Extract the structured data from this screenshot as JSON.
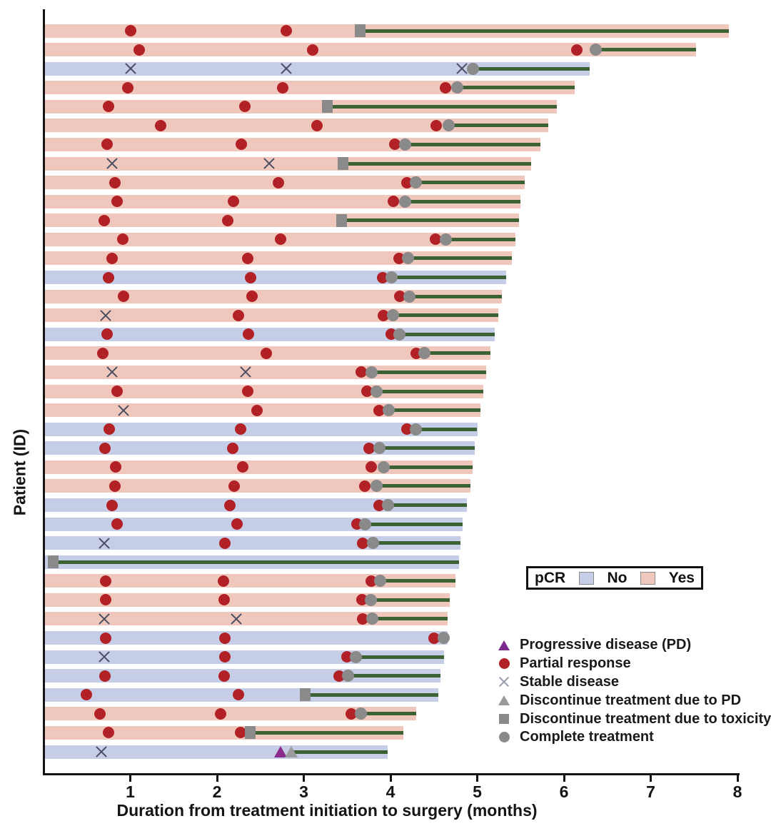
{
  "pcr_legend": {
    "title": "pCR",
    "no_label": "No",
    "yes_label": "Yes"
  },
  "marker_legend": {
    "items": [
      {
        "key": "progressive-disease",
        "marker": "pd_triangle",
        "label": "Progressive disease (PD)"
      },
      {
        "key": "partial-response",
        "marker": "red_circle",
        "label": "Partial response"
      },
      {
        "key": "stable-disease",
        "marker": "x_cross",
        "label": "Stable disease"
      },
      {
        "key": "discontinue-pd",
        "marker": "gray_triangle",
        "label": "Discontinue treatment due to PD"
      },
      {
        "key": "discontinue-toxicity",
        "marker": "gray_square",
        "label": "Discontinue treatment due to toxicity"
      },
      {
        "key": "complete-treatment",
        "marker": "gray_circle",
        "label": "Complete treatment"
      }
    ]
  },
  "colors": {
    "pcr_yes": "#f0c7bd",
    "pcr_no": "#c5cde7",
    "partial_response": "#b22126",
    "stable_disease": "#4a4e63",
    "progressive_disease": "#8b2b8d",
    "treatment_gap_line": "#3c6132",
    "discontinue_complete_marker": "#8a8a8a",
    "axis": "#141414"
  },
  "chart_data": {
    "type": "bar",
    "subtype": "swimmer-plot",
    "title": "",
    "xlabel": "Duration from treatment initiation to surgery (months)",
    "ylabel": "Patient (ID)",
    "xlim": [
      0,
      8
    ],
    "x_ticks": [
      1,
      2,
      3,
      4,
      5,
      6,
      7,
      8
    ],
    "grid": false,
    "bar_value_meaning": "months from treatment initiation to surgery",
    "patients": [
      {
        "pcr": "Yes",
        "surgery_months": 7.9,
        "treatment_end": {
          "type": "discontinue_toxicity",
          "x": 3.65
        },
        "markers": [
          {
            "type": "partial_response",
            "x": 1.0
          },
          {
            "type": "partial_response",
            "x": 2.8
          }
        ]
      },
      {
        "pcr": "Yes",
        "surgery_months": 7.52,
        "treatment_end": {
          "type": "complete_treatment",
          "x": 6.37
        },
        "markers": [
          {
            "type": "partial_response",
            "x": 1.1
          },
          {
            "type": "partial_response",
            "x": 3.1
          },
          {
            "type": "partial_response",
            "x": 6.15
          }
        ]
      },
      {
        "pcr": "No",
        "surgery_months": 6.3,
        "treatment_end": {
          "type": "complete_treatment",
          "x": 4.95
        },
        "markers": [
          {
            "type": "stable_disease",
            "x": 1.0
          },
          {
            "type": "stable_disease",
            "x": 2.8
          },
          {
            "type": "stable_disease",
            "x": 4.82
          }
        ]
      },
      {
        "pcr": "Yes",
        "surgery_months": 6.12,
        "treatment_end": {
          "type": "complete_treatment",
          "x": 4.77
        },
        "markers": [
          {
            "type": "partial_response",
            "x": 0.97
          },
          {
            "type": "partial_response",
            "x": 2.76
          },
          {
            "type": "partial_response",
            "x": 4.63
          }
        ]
      },
      {
        "pcr": "Yes",
        "surgery_months": 5.92,
        "treatment_end": {
          "type": "discontinue_toxicity",
          "x": 3.27
        },
        "markers": [
          {
            "type": "partial_response",
            "x": 0.75
          },
          {
            "type": "partial_response",
            "x": 2.32
          }
        ]
      },
      {
        "pcr": "Yes",
        "surgery_months": 5.82,
        "treatment_end": {
          "type": "complete_treatment",
          "x": 4.67
        },
        "markers": [
          {
            "type": "partial_response",
            "x": 1.35
          },
          {
            "type": "partial_response",
            "x": 3.15
          },
          {
            "type": "partial_response",
            "x": 4.53
          }
        ]
      },
      {
        "pcr": "Yes",
        "surgery_months": 5.73,
        "treatment_end": {
          "type": "complete_treatment",
          "x": 4.17
        },
        "markers": [
          {
            "type": "partial_response",
            "x": 0.73
          },
          {
            "type": "partial_response",
            "x": 2.28
          },
          {
            "type": "partial_response",
            "x": 4.05
          }
        ]
      },
      {
        "pcr": "Yes",
        "surgery_months": 5.62,
        "treatment_end": {
          "type": "discontinue_toxicity",
          "x": 3.45
        },
        "markers": [
          {
            "type": "stable_disease",
            "x": 0.79
          },
          {
            "type": "stable_disease",
            "x": 2.6
          }
        ]
      },
      {
        "pcr": "Yes",
        "surgery_months": 5.55,
        "treatment_end": {
          "type": "complete_treatment",
          "x": 4.29
        },
        "markers": [
          {
            "type": "partial_response",
            "x": 0.82
          },
          {
            "type": "partial_response",
            "x": 2.71
          },
          {
            "type": "partial_response",
            "x": 4.19
          }
        ]
      },
      {
        "pcr": "Yes",
        "surgery_months": 5.5,
        "treatment_end": {
          "type": "complete_treatment",
          "x": 4.17
        },
        "markers": [
          {
            "type": "partial_response",
            "x": 0.85
          },
          {
            "type": "partial_response",
            "x": 2.19
          },
          {
            "type": "partial_response",
            "x": 4.03
          }
        ]
      },
      {
        "pcr": "Yes",
        "surgery_months": 5.48,
        "treatment_end": {
          "type": "discontinue_toxicity",
          "x": 3.44
        },
        "markers": [
          {
            "type": "partial_response",
            "x": 0.7
          },
          {
            "type": "partial_response",
            "x": 2.12
          }
        ]
      },
      {
        "pcr": "Yes",
        "surgery_months": 5.44,
        "treatment_end": {
          "type": "complete_treatment",
          "x": 4.64
        },
        "markers": [
          {
            "type": "partial_response",
            "x": 0.91
          },
          {
            "type": "partial_response",
            "x": 2.73
          },
          {
            "type": "partial_response",
            "x": 4.52
          }
        ]
      },
      {
        "pcr": "Yes",
        "surgery_months": 5.4,
        "treatment_end": {
          "type": "complete_treatment",
          "x": 4.2
        },
        "markers": [
          {
            "type": "partial_response",
            "x": 0.79
          },
          {
            "type": "partial_response",
            "x": 2.35
          },
          {
            "type": "partial_response",
            "x": 4.1
          }
        ]
      },
      {
        "pcr": "No",
        "surgery_months": 5.33,
        "treatment_end": {
          "type": "complete_treatment",
          "x": 4.01
        },
        "markers": [
          {
            "type": "partial_response",
            "x": 0.75
          },
          {
            "type": "partial_response",
            "x": 2.39
          },
          {
            "type": "partial_response",
            "x": 3.91
          }
        ]
      },
      {
        "pcr": "Yes",
        "surgery_months": 5.28,
        "treatment_end": {
          "type": "complete_treatment",
          "x": 4.22
        },
        "markers": [
          {
            "type": "partial_response",
            "x": 0.92
          },
          {
            "type": "partial_response",
            "x": 2.4
          },
          {
            "type": "partial_response",
            "x": 4.11
          }
        ]
      },
      {
        "pcr": "Yes",
        "surgery_months": 5.24,
        "treatment_end": {
          "type": "complete_treatment",
          "x": 4.03
        },
        "markers": [
          {
            "type": "stable_disease",
            "x": 0.72
          },
          {
            "type": "partial_response",
            "x": 2.25
          },
          {
            "type": "partial_response",
            "x": 3.92
          }
        ]
      },
      {
        "pcr": "No",
        "surgery_months": 5.2,
        "treatment_end": {
          "type": "complete_treatment",
          "x": 4.1
        },
        "markers": [
          {
            "type": "partial_response",
            "x": 0.73
          },
          {
            "type": "partial_response",
            "x": 2.36
          },
          {
            "type": "partial_response",
            "x": 4.01
          }
        ]
      },
      {
        "pcr": "Yes",
        "surgery_months": 5.15,
        "treatment_end": {
          "type": "complete_treatment",
          "x": 4.39
        },
        "markers": [
          {
            "type": "partial_response",
            "x": 0.68
          },
          {
            "type": "partial_response",
            "x": 2.57
          },
          {
            "type": "partial_response",
            "x": 4.3
          }
        ]
      },
      {
        "pcr": "Yes",
        "surgery_months": 5.1,
        "treatment_end": {
          "type": "complete_treatment",
          "x": 3.78
        },
        "markers": [
          {
            "type": "stable_disease",
            "x": 0.79
          },
          {
            "type": "stable_disease",
            "x": 2.33
          },
          {
            "type": "partial_response",
            "x": 3.66
          }
        ]
      },
      {
        "pcr": "Yes",
        "surgery_months": 5.07,
        "treatment_end": {
          "type": "complete_treatment",
          "x": 3.84
        },
        "markers": [
          {
            "type": "partial_response",
            "x": 0.85
          },
          {
            "type": "partial_response",
            "x": 2.35
          },
          {
            "type": "partial_response",
            "x": 3.73
          }
        ]
      },
      {
        "pcr": "Yes",
        "surgery_months": 5.04,
        "treatment_end": {
          "type": "complete_treatment",
          "x": 3.98
        },
        "markers": [
          {
            "type": "stable_disease",
            "x": 0.92
          },
          {
            "type": "partial_response",
            "x": 2.46
          },
          {
            "type": "partial_response",
            "x": 3.87
          }
        ]
      },
      {
        "pcr": "No",
        "surgery_months": 5.0,
        "treatment_end": {
          "type": "complete_treatment",
          "x": 4.29
        },
        "markers": [
          {
            "type": "partial_response",
            "x": 0.76
          },
          {
            "type": "partial_response",
            "x": 2.27
          },
          {
            "type": "partial_response",
            "x": 4.19
          }
        ]
      },
      {
        "pcr": "No",
        "surgery_months": 4.97,
        "treatment_end": {
          "type": "complete_treatment",
          "x": 3.87
        },
        "markers": [
          {
            "type": "partial_response",
            "x": 0.71
          },
          {
            "type": "partial_response",
            "x": 2.18
          },
          {
            "type": "partial_response",
            "x": 3.75
          }
        ]
      },
      {
        "pcr": "Yes",
        "surgery_months": 4.95,
        "treatment_end": {
          "type": "complete_treatment",
          "x": 3.92
        },
        "markers": [
          {
            "type": "partial_response",
            "x": 0.83
          },
          {
            "type": "partial_response",
            "x": 2.3
          },
          {
            "type": "partial_response",
            "x": 3.78
          }
        ]
      },
      {
        "pcr": "Yes",
        "surgery_months": 4.92,
        "treatment_end": {
          "type": "complete_treatment",
          "x": 3.84
        },
        "markers": [
          {
            "type": "partial_response",
            "x": 0.82
          },
          {
            "type": "partial_response",
            "x": 2.2
          },
          {
            "type": "partial_response",
            "x": 3.7
          }
        ]
      },
      {
        "pcr": "No",
        "surgery_months": 4.88,
        "treatment_end": {
          "type": "complete_treatment",
          "x": 3.97
        },
        "markers": [
          {
            "type": "partial_response",
            "x": 0.79
          },
          {
            "type": "partial_response",
            "x": 2.15
          },
          {
            "type": "partial_response",
            "x": 3.87
          }
        ]
      },
      {
        "pcr": "No",
        "surgery_months": 4.83,
        "treatment_end": {
          "type": "complete_treatment",
          "x": 3.71
        },
        "markers": [
          {
            "type": "partial_response",
            "x": 0.85
          },
          {
            "type": "partial_response",
            "x": 2.23
          },
          {
            "type": "partial_response",
            "x": 3.61
          }
        ]
      },
      {
        "pcr": "No",
        "surgery_months": 4.81,
        "treatment_end": {
          "type": "complete_treatment",
          "x": 3.8
        },
        "markers": [
          {
            "type": "stable_disease",
            "x": 0.7
          },
          {
            "type": "partial_response",
            "x": 2.09
          },
          {
            "type": "partial_response",
            "x": 3.68
          }
        ]
      },
      {
        "pcr": "No",
        "surgery_months": 4.79,
        "treatment_end": {
          "type": "discontinue_toxicity",
          "x": 0.11
        },
        "markers": []
      },
      {
        "pcr": "Yes",
        "surgery_months": 4.75,
        "treatment_end": {
          "type": "complete_treatment",
          "x": 3.88
        },
        "markers": [
          {
            "type": "partial_response",
            "x": 0.72
          },
          {
            "type": "partial_response",
            "x": 2.07
          },
          {
            "type": "partial_response",
            "x": 3.78
          }
        ]
      },
      {
        "pcr": "Yes",
        "surgery_months": 4.68,
        "treatment_end": {
          "type": "complete_treatment",
          "x": 3.77
        },
        "markers": [
          {
            "type": "partial_response",
            "x": 0.72
          },
          {
            "type": "partial_response",
            "x": 2.08
          },
          {
            "type": "partial_response",
            "x": 3.67
          }
        ]
      },
      {
        "pcr": "Yes",
        "surgery_months": 4.66,
        "treatment_end": {
          "type": "complete_treatment",
          "x": 3.79
        },
        "markers": [
          {
            "type": "stable_disease",
            "x": 0.7
          },
          {
            "type": "stable_disease",
            "x": 2.22
          },
          {
            "type": "partial_response",
            "x": 3.68
          }
        ]
      },
      {
        "pcr": "No",
        "surgery_months": 4.66,
        "treatment_end": {
          "type": "complete_treatment",
          "x": 4.61
        },
        "markers": [
          {
            "type": "partial_response",
            "x": 0.72
          },
          {
            "type": "partial_response",
            "x": 2.09
          },
          {
            "type": "partial_response",
            "x": 4.5
          }
        ]
      },
      {
        "pcr": "No",
        "surgery_months": 4.62,
        "treatment_end": {
          "type": "complete_treatment",
          "x": 3.6
        },
        "markers": [
          {
            "type": "stable_disease",
            "x": 0.7
          },
          {
            "type": "partial_response",
            "x": 2.09
          },
          {
            "type": "partial_response",
            "x": 3.5
          }
        ]
      },
      {
        "pcr": "No",
        "surgery_months": 4.58,
        "treatment_end": {
          "type": "complete_treatment",
          "x": 3.51
        },
        "markers": [
          {
            "type": "partial_response",
            "x": 0.71
          },
          {
            "type": "partial_response",
            "x": 2.08
          },
          {
            "type": "partial_response",
            "x": 3.41
          }
        ]
      },
      {
        "pcr": "No",
        "surgery_months": 4.55,
        "treatment_end": {
          "type": "discontinue_toxicity",
          "x": 3.02
        },
        "markers": [
          {
            "type": "partial_response",
            "x": 0.49
          },
          {
            "type": "partial_response",
            "x": 2.25
          }
        ]
      },
      {
        "pcr": "Yes",
        "surgery_months": 4.3,
        "treatment_end": {
          "type": "complete_treatment",
          "x": 3.66
        },
        "markers": [
          {
            "type": "partial_response",
            "x": 0.65
          },
          {
            "type": "partial_response",
            "x": 2.04
          },
          {
            "type": "partial_response",
            "x": 3.55
          }
        ]
      },
      {
        "pcr": "Yes",
        "surgery_months": 4.15,
        "treatment_end": {
          "type": "discontinue_toxicity",
          "x": 2.38
        },
        "markers": [
          {
            "type": "partial_response",
            "x": 0.75
          },
          {
            "type": "partial_response",
            "x": 2.27
          }
        ]
      },
      {
        "pcr": "No",
        "surgery_months": 3.97,
        "treatment_end": {
          "type": "discontinue_pd",
          "x": 2.86
        },
        "markers": [
          {
            "type": "stable_disease",
            "x": 0.67
          },
          {
            "type": "progressive_disease",
            "x": 2.73
          }
        ]
      }
    ]
  }
}
